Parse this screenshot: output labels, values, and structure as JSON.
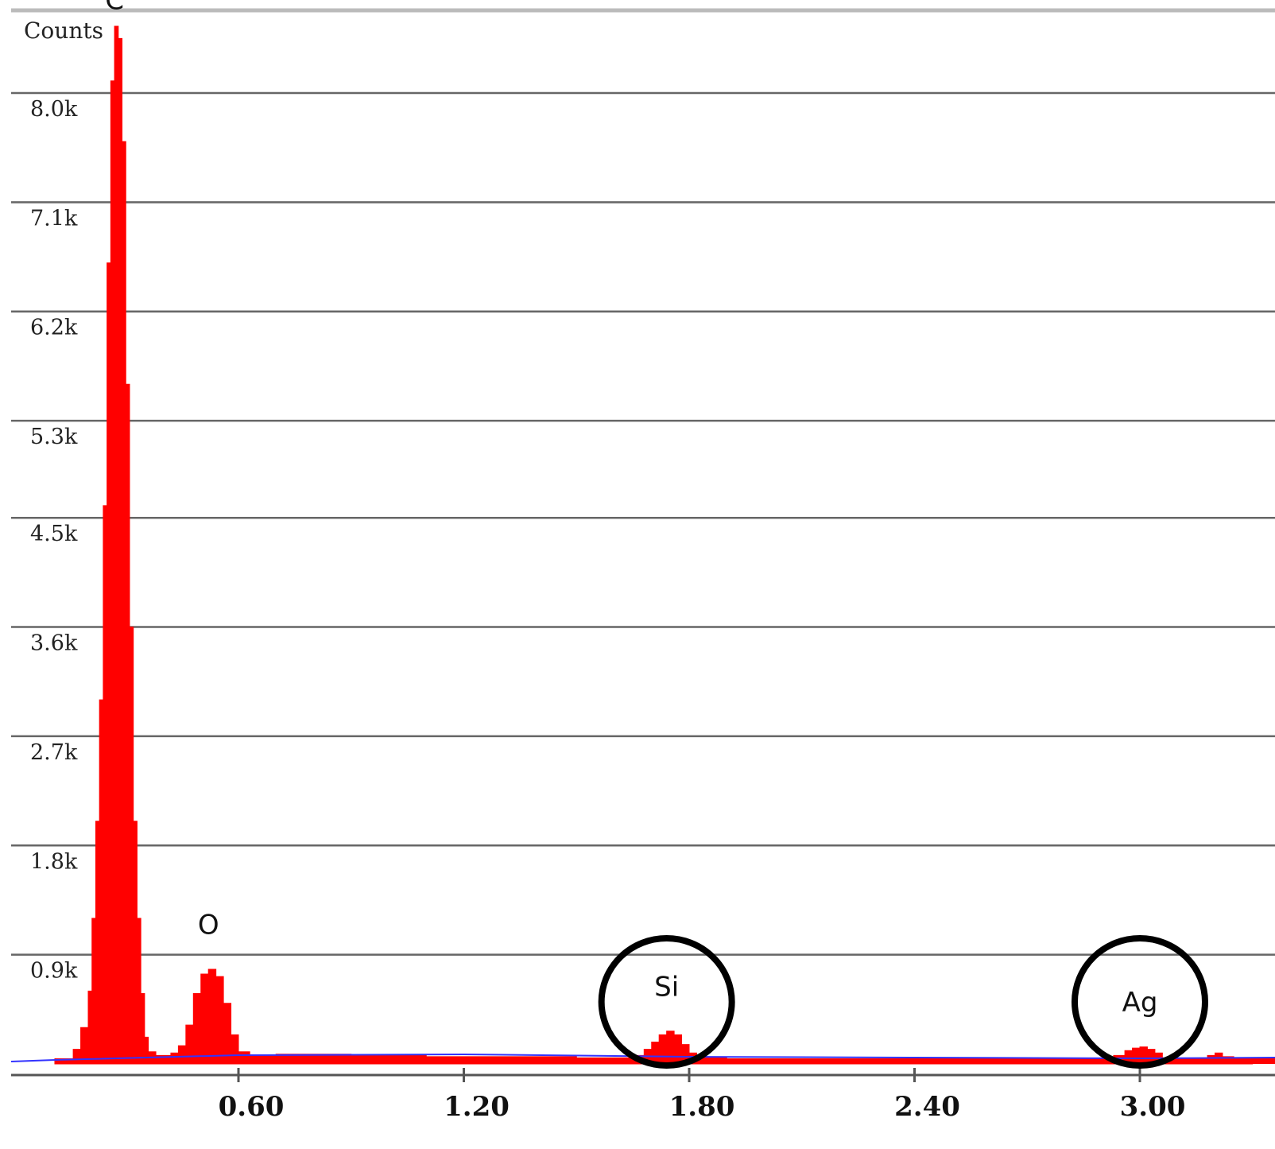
{
  "chart_data": {
    "type": "area",
    "title": "",
    "ylabel": "Counts",
    "xlabel": "",
    "xlim": [
      0.0,
      3.3
    ],
    "ylim": [
      0,
      8.7
    ],
    "y_unit": "k counts",
    "yticks": [
      {
        "value": 0.9,
        "label": "0.9k"
      },
      {
        "value": 1.8,
        "label": "1.8k"
      },
      {
        "value": 2.7,
        "label": "2.7k"
      },
      {
        "value": 3.6,
        "label": "3.6k"
      },
      {
        "value": 4.5,
        "label": "4.5k"
      },
      {
        "value": 5.3,
        "label": "5.3k"
      },
      {
        "value": 6.2,
        "label": "6.2k"
      },
      {
        "value": 7.1,
        "label": "7.1k"
      },
      {
        "value": 8.0,
        "label": "8.0k"
      }
    ],
    "xticks": [
      {
        "value": 0.6,
        "label": "0.60"
      },
      {
        "value": 1.2,
        "label": "1.20"
      },
      {
        "value": 1.8,
        "label": "1.80"
      },
      {
        "value": 2.4,
        "label": "2.40"
      },
      {
        "value": 3.0,
        "label": "3.00"
      }
    ],
    "grid": true,
    "colors": {
      "spectrum": "#ff0000",
      "background_fit": "#3333ff",
      "grid": "#666666",
      "circle": "#000000"
    },
    "series": [
      {
        "x": [
          0.11,
          0.14,
          0.16,
          0.18,
          0.2,
          0.21,
          0.22,
          0.23,
          0.24,
          0.25,
          0.26,
          0.27,
          0.28,
          0.29,
          0.3,
          0.31,
          0.32,
          0.33,
          0.34,
          0.35,
          0.36,
          0.38,
          0.4,
          0.42,
          0.44,
          0.46,
          0.48,
          0.5,
          0.52,
          0.54,
          0.56,
          0.58,
          0.6,
          0.63,
          0.66,
          0.7,
          0.75,
          0.8,
          0.9,
          1.0,
          1.1,
          1.2,
          1.3,
          1.4,
          1.5,
          1.6,
          1.65,
          1.68,
          1.7,
          1.72,
          1.74,
          1.76,
          1.78,
          1.8,
          1.82,
          1.85,
          1.9,
          2.0,
          2.1,
          2.2,
          2.3,
          2.4,
          2.5,
          2.6,
          2.7,
          2.8,
          2.9,
          2.93,
          2.96,
          2.98,
          3.0,
          3.02,
          3.04,
          3.06,
          3.1,
          3.15,
          3.18,
          3.2,
          3.22,
          3.25,
          3.3
        ],
        "values": [
          0.0,
          0.04,
          0.12,
          0.3,
          0.6,
          1.2,
          2.0,
          3.0,
          4.6,
          6.6,
          8.1,
          8.55,
          8.45,
          7.6,
          5.6,
          3.6,
          2.0,
          1.2,
          0.58,
          0.22,
          0.1,
          0.07,
          0.07,
          0.09,
          0.15,
          0.32,
          0.58,
          0.74,
          0.78,
          0.72,
          0.5,
          0.24,
          0.1,
          0.07,
          0.07,
          0.08,
          0.08,
          0.08,
          0.07,
          0.07,
          0.06,
          0.06,
          0.06,
          0.06,
          0.05,
          0.05,
          0.07,
          0.12,
          0.18,
          0.24,
          0.27,
          0.24,
          0.16,
          0.09,
          0.06,
          0.05,
          0.04,
          0.04,
          0.04,
          0.04,
          0.04,
          0.04,
          0.04,
          0.04,
          0.04,
          0.04,
          0.05,
          0.07,
          0.11,
          0.13,
          0.14,
          0.12,
          0.09,
          0.05,
          0.04,
          0.04,
          0.07,
          0.09,
          0.06,
          0.04,
          0.04
        ]
      }
    ],
    "peak_labels": [
      {
        "text": "C",
        "x": 0.27,
        "y": 8.6,
        "circled": false
      },
      {
        "text": "O",
        "x": 0.52,
        "y": 0.98,
        "circled": false
      },
      {
        "text": "Si",
        "x": 1.74,
        "y": 0.47,
        "circled": true
      },
      {
        "text": "Ag",
        "x": 3.0,
        "y": 0.34,
        "circled": true
      }
    ]
  }
}
